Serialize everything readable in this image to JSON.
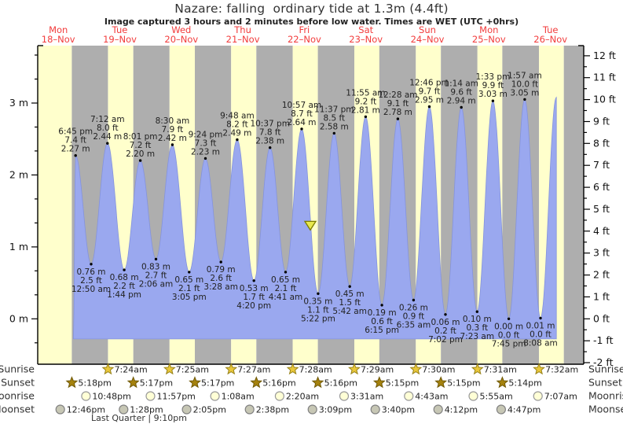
{
  "title": "Nazare: falling  ordinary tide at 1.3m (4.4ft)",
  "subtitle": "Image captured 3 hours and 2 minutes before low water. Times are WET (UTC +0hrs)",
  "colors": {
    "day_band": "#ffffcc",
    "night_band": "#aeaeae",
    "tide_fill": "#9aa8ef",
    "tide_stroke": "#8493dd",
    "day_label": "#f23b3b",
    "annotation_text": "#222222",
    "axis": "#000000",
    "marker_fill": "#e8e84e",
    "marker_stroke": "#7c7c00",
    "sunrise_fill": "#e9c73a",
    "sunrise_stroke": "#97821a",
    "sunset_fill": "#a5820e",
    "sunset_stroke": "#6f5806",
    "moonrise_fill": "#ffffd6",
    "moonrise_stroke": "#9a9a9a",
    "moonset_fill": "#c7c7b5",
    "moonset_stroke": "#828282"
  },
  "days": [
    {
      "dow": "Mon",
      "date": "18–Nov"
    },
    {
      "dow": "Tue",
      "date": "19–Nov"
    },
    {
      "dow": "Wed",
      "date": "20–Nov"
    },
    {
      "dow": "Thu",
      "date": "21–Nov"
    },
    {
      "dow": "Fri",
      "date": "22–Nov"
    },
    {
      "dow": "Sat",
      "date": "23–Nov"
    },
    {
      "dow": "Sun",
      "date": "24–Nov"
    },
    {
      "dow": "Mon",
      "date": "25–Nov"
    },
    {
      "dow": "Tue",
      "date": "26–Nov"
    }
  ],
  "chart_data": {
    "type": "area",
    "title": "Nazare: falling ordinary tide at 1.3m (4.4ft)",
    "x_axis": "time, Mon 18-Nov through Tue 26-Nov (WET, UTC +0hrs)",
    "ylabel_left": "m",
    "ylabel_right": "ft",
    "baseline_m": -0.28,
    "curve_start_t": 17.9,
    "axes": {
      "left_labels": [
        "0 m",
        "1 m",
        "2 m",
        "3 m"
      ],
      "right_labels": [
        "-2 ft",
        "-1 ft",
        "0 ft",
        "1 ft",
        "2 ft",
        "3 ft",
        "4 ft",
        "5 ft",
        "6 ft",
        "7 ft",
        "8 ft",
        "9 ft",
        "10 ft",
        "11 ft",
        "12 ft"
      ]
    },
    "events": [
      {
        "t": 18.75,
        "type": "H",
        "m": 2.27,
        "lines": [
          "6:45 pm",
          "7.4 ft",
          "2.27 m"
        ]
      },
      {
        "t": 24.833,
        "type": "L",
        "m": 0.76,
        "lines": [
          "0.76 m",
          "2.5 ft",
          "12:50 am"
        ]
      },
      {
        "t": 31.2,
        "type": "H",
        "m": 2.44,
        "lines": [
          "7:12 am",
          "8.0 ft",
          "2.44 m"
        ]
      },
      {
        "t": 37.733,
        "type": "L",
        "m": 0.68,
        "lines": [
          "0.68 m",
          "2.2 ft",
          "1:44 pm"
        ]
      },
      {
        "t": 44.017,
        "type": "H",
        "m": 2.2,
        "lines": [
          "8:01 pm",
          "7.2 ft",
          "2.20 m"
        ]
      },
      {
        "t": 50.1,
        "type": "L",
        "m": 0.83,
        "lines": [
          "0.83 m",
          "2.7 ft",
          "2:06 am"
        ]
      },
      {
        "t": 56.5,
        "type": "H",
        "m": 2.42,
        "lines": [
          "8:30 am",
          "7.9 ft",
          "2.42 m"
        ]
      },
      {
        "t": 63.083,
        "type": "L",
        "m": 0.65,
        "lines": [
          "0.65 m",
          "2.1 ft",
          "3:05 pm"
        ]
      },
      {
        "t": 69.4,
        "type": "H",
        "m": 2.23,
        "lines": [
          "9:24 pm",
          "7.3 ft",
          "2.23 m"
        ]
      },
      {
        "t": 75.467,
        "type": "L",
        "m": 0.79,
        "lines": [
          "0.79 m",
          "2.6 ft",
          "3:28 am"
        ]
      },
      {
        "t": 81.8,
        "type": "H",
        "m": 2.49,
        "lines": [
          "9:48 am",
          "8.2 ft",
          "2.49 m"
        ]
      },
      {
        "t": 88.333,
        "type": "L",
        "m": 0.53,
        "lines": [
          "0.53 m",
          "1.7 ft",
          "4:20 pm"
        ]
      },
      {
        "t": 94.617,
        "type": "H",
        "m": 2.38,
        "lines": [
          "10:37 pm",
          "7.8 ft",
          "2.38 m"
        ]
      },
      {
        "t": 100.683,
        "type": "L",
        "m": 0.65,
        "lines": [
          "0.65 m",
          "2.1 ft",
          "4:41 am"
        ]
      },
      {
        "t": 106.95,
        "type": "H",
        "m": 2.64,
        "lines": [
          "10:57 am",
          "8.7 ft",
          "2.64 m"
        ]
      },
      {
        "t": 113.367,
        "type": "L",
        "m": 0.35,
        "lines": [
          "0.35 m",
          "1.1 ft",
          "5:22 pm"
        ]
      },
      {
        "t": 119.617,
        "type": "H",
        "m": 2.58,
        "lines": [
          "11:37 pm",
          "8.5 ft",
          "2.58 m"
        ]
      },
      {
        "t": 125.7,
        "type": "L",
        "m": 0.45,
        "lines": [
          "0.45 m",
          "1.5 ft",
          "5:42 am"
        ]
      },
      {
        "t": 131.917,
        "type": "H",
        "m": 2.81,
        "lines": [
          "11:55 am",
          "9.2 ft",
          "2.81 m"
        ]
      },
      {
        "t": 138.25,
        "type": "L",
        "m": 0.19,
        "lines": [
          "0.19 m",
          "0.6 ft",
          "6:15 pm"
        ]
      },
      {
        "t": 144.467,
        "type": "H",
        "m": 2.78,
        "lines": [
          "12:28 am",
          "9.1 ft",
          "2.78 m"
        ]
      },
      {
        "t": 150.583,
        "type": "L",
        "m": 0.26,
        "lines": [
          "0.26 m",
          "0.9 ft",
          "6:35 am"
        ]
      },
      {
        "t": 156.767,
        "type": "H",
        "m": 2.95,
        "lines": [
          "12:46 pm",
          "9.7 ft",
          "2.95 m"
        ]
      },
      {
        "t": 163.033,
        "type": "L",
        "m": 0.06,
        "lines": [
          "0.06 m",
          "0.2 ft",
          "7:02 pm"
        ]
      },
      {
        "t": 169.233,
        "type": "H",
        "m": 2.94,
        "lines": [
          "1:14 am",
          "9.6 ft",
          "2.94 m"
        ]
      },
      {
        "t": 175.383,
        "type": "L",
        "m": 0.1,
        "lines": [
          "0.10 m",
          "0.3 ft",
          "7:23 am"
        ]
      },
      {
        "t": 181.55,
        "type": "H",
        "m": 3.03,
        "lines": [
          "1:33 pm",
          "9.9 ft",
          "3.03 m"
        ]
      },
      {
        "t": 187.75,
        "type": "L",
        "m": 0.0,
        "lines": [
          "0.00 m",
          "0.0 ft",
          "7:45 pm"
        ]
      },
      {
        "t": 193.95,
        "type": "H",
        "m": 3.05,
        "lines": [
          "1:57 am",
          "10.0 ft",
          "3.05 m"
        ]
      },
      {
        "t": 200.133,
        "type": "L",
        "m": 0.01,
        "lines": [
          "0.01 m",
          "0.0 ft",
          "8:08 am"
        ]
      },
      {
        "t": 206.3,
        "type": "H",
        "m": 3.08,
        "lines": []
      }
    ],
    "marker": {
      "t": 110.33,
      "m": 1.3
    }
  },
  "astro": {
    "rows": [
      {
        "label": "Sunrise",
        "icon": "sunrise",
        "entries": [
          {
            "time": "7:24am",
            "t": 31.4
          },
          {
            "time": "7:25am",
            "t": 55.417
          },
          {
            "time": "7:27am",
            "t": 79.45
          },
          {
            "time": "7:28am",
            "t": 103.467
          },
          {
            "time": "7:29am",
            "t": 127.483
          },
          {
            "time": "7:30am",
            "t": 151.5
          },
          {
            "time": "7:31am",
            "t": 175.517
          },
          {
            "time": "7:32am",
            "t": 199.533
          }
        ]
      },
      {
        "label": "Sunset",
        "icon": "sunset",
        "entries": [
          {
            "time": "5:18pm",
            "t": 17.3
          },
          {
            "time": "5:17pm",
            "t": 41.283
          },
          {
            "time": "5:17pm",
            "t": 65.283
          },
          {
            "time": "5:16pm",
            "t": 89.267
          },
          {
            "time": "5:16pm",
            "t": 113.267
          },
          {
            "time": "5:15pm",
            "t": 137.25
          },
          {
            "time": "5:15pm",
            "t": 161.25
          },
          {
            "time": "5:14pm",
            "t": 185.233
          }
        ]
      },
      {
        "label": "Moonrise",
        "icon": "moonrise",
        "entries": [
          {
            "time": "10:48pm",
            "t": 22.8
          },
          {
            "time": "11:57pm",
            "t": 47.95
          },
          {
            "time": "1:08am",
            "t": 73.133
          },
          {
            "time": "2:20am",
            "t": 98.333
          },
          {
            "time": "3:31am",
            "t": 123.517
          },
          {
            "time": "4:43am",
            "t": 148.717
          },
          {
            "time": "5:55am",
            "t": 173.917
          },
          {
            "time": "7:07am",
            "t": 199.117
          }
        ]
      },
      {
        "label": "Moonset",
        "icon": "moonset",
        "entries": [
          {
            "time": "12:46pm",
            "t": 12.767
          },
          {
            "time": "1:28pm",
            "t": 37.467
          },
          {
            "time": "2:05pm",
            "t": 62.083
          },
          {
            "time": "2:38pm",
            "t": 86.633
          },
          {
            "time": "3:09pm",
            "t": 111.15
          },
          {
            "time": "3:40pm",
            "t": 135.667
          },
          {
            "time": "4:12pm",
            "t": 160.2
          },
          {
            "time": "4:47pm",
            "t": 184.783
          }
        ]
      }
    ],
    "note": "Last Quarter | 9:10pm"
  }
}
